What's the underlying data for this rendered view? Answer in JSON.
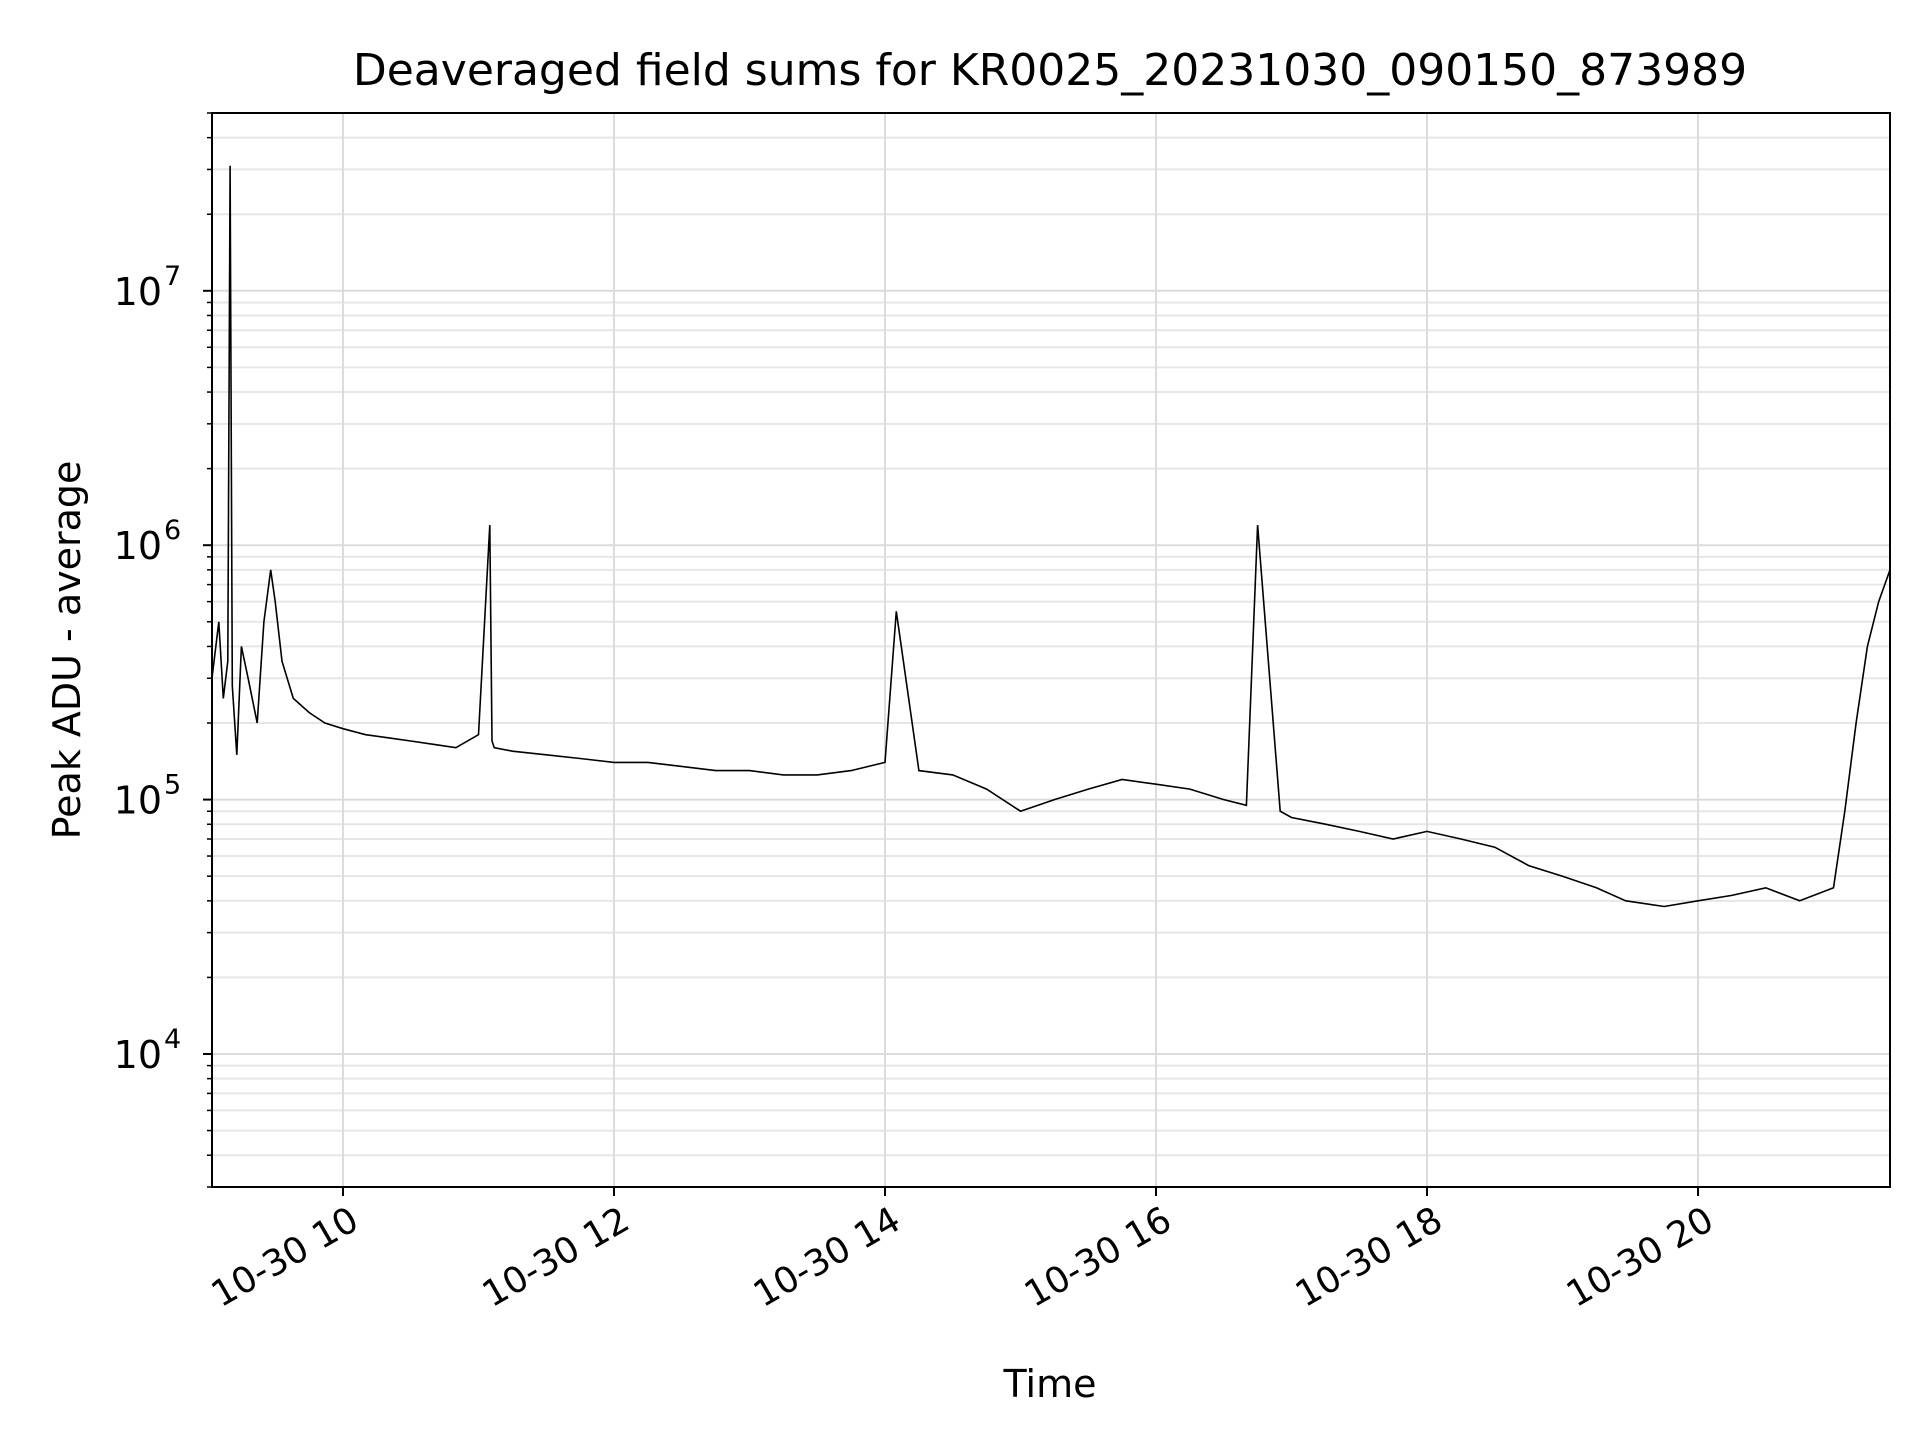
{
  "chart_data": {
    "type": "line",
    "title": "Deaveraged field sums for KR0025_20231030_090150_873989",
    "xlabel": "Time",
    "ylabel": "Peak ADU - average",
    "x_range": [
      "2023-10-30 09:02",
      "2023-10-30 21:25"
    ],
    "ylim": [
      3000,
      50000000
    ],
    "y_scale": "log",
    "grid": true,
    "grid_minor": true,
    "line_color": "#000000",
    "x_ticks": [
      {
        "value": "2023-10-30 10:00",
        "label": "10-30 10"
      },
      {
        "value": "2023-10-30 12:00",
        "label": "10-30 12"
      },
      {
        "value": "2023-10-30 14:00",
        "label": "10-30 14"
      },
      {
        "value": "2023-10-30 16:00",
        "label": "10-30 16"
      },
      {
        "value": "2023-10-30 18:00",
        "label": "10-30 18"
      },
      {
        "value": "2023-10-30 20:00",
        "label": "10-30 20"
      }
    ],
    "y_ticks": [
      {
        "value": 10000,
        "base": "10",
        "exp": "4"
      },
      {
        "value": 100000,
        "base": "10",
        "exp": "5"
      },
      {
        "value": 1000000,
        "base": "10",
        "exp": "6"
      },
      {
        "value": 10000000,
        "base": "10",
        "exp": "7"
      }
    ],
    "series": [
      {
        "x": [
          "2023-10-30 09:02",
          "2023-10-30 09:05",
          "2023-10-30 09:07",
          "2023-10-30 09:09",
          "2023-10-30 09:10",
          "2023-10-30 09:11",
          "2023-10-30 09:13",
          "2023-10-30 09:15",
          "2023-10-30 09:18",
          "2023-10-30 09:22",
          "2023-10-30 09:25",
          "2023-10-30 09:28",
          "2023-10-30 09:30",
          "2023-10-30 09:33",
          "2023-10-30 09:38",
          "2023-10-30 09:45",
          "2023-10-30 09:52",
          "2023-10-30 10:00",
          "2023-10-30 10:10",
          "2023-10-30 10:20",
          "2023-10-30 10:30",
          "2023-10-30 10:40",
          "2023-10-30 10:50",
          "2023-10-30 11:00",
          "2023-10-30 11:05",
          "2023-10-30 11:06",
          "2023-10-30 11:07",
          "2023-10-30 11:15",
          "2023-10-30 11:30",
          "2023-10-30 11:45",
          "2023-10-30 12:00",
          "2023-10-30 12:15",
          "2023-10-30 12:30",
          "2023-10-30 12:45",
          "2023-10-30 13:00",
          "2023-10-30 13:15",
          "2023-10-30 13:30",
          "2023-10-30 13:45",
          "2023-10-30 14:00",
          "2023-10-30 14:05",
          "2023-10-30 14:15",
          "2023-10-30 14:30",
          "2023-10-30 14:45",
          "2023-10-30 15:00",
          "2023-10-30 15:15",
          "2023-10-30 15:30",
          "2023-10-30 15:45",
          "2023-10-30 16:00",
          "2023-10-30 16:15",
          "2023-10-30 16:30",
          "2023-10-30 16:40",
          "2023-10-30 16:45",
          "2023-10-30 16:55",
          "2023-10-30 17:00",
          "2023-10-30 17:15",
          "2023-10-30 17:30",
          "2023-10-30 17:45",
          "2023-10-30 18:00",
          "2023-10-30 18:15",
          "2023-10-30 18:30",
          "2023-10-30 18:45",
          "2023-10-30 19:00",
          "2023-10-30 19:15",
          "2023-10-30 19:28",
          "2023-10-30 19:45",
          "2023-10-30 20:00",
          "2023-10-30 20:15",
          "2023-10-30 20:30",
          "2023-10-30 20:45",
          "2023-10-30 21:00",
          "2023-10-30 21:05",
          "2023-10-30 21:10",
          "2023-10-30 21:15",
          "2023-10-30 21:20",
          "2023-10-30 21:25"
        ],
        "y": [
          300000,
          500000,
          250000,
          350000,
          31000000,
          280000,
          150000,
          400000,
          300000,
          200000,
          500000,
          800000,
          600000,
          350000,
          250000,
          220000,
          200000,
          190000,
          180000,
          175000,
          170000,
          165000,
          160000,
          180000,
          1200000,
          170000,
          160000,
          155000,
          150000,
          145000,
          140000,
          140000,
          135000,
          130000,
          130000,
          125000,
          125000,
          130000,
          140000,
          550000,
          130000,
          125000,
          110000,
          90000,
          100000,
          110000,
          120000,
          115000,
          110000,
          100000,
          95000,
          1200000,
          90000,
          85000,
          80000,
          75000,
          70000,
          75000,
          70000,
          65000,
          55000,
          50000,
          45000,
          40000,
          38000,
          40000,
          42000,
          45000,
          40000,
          45000,
          90000,
          200000,
          400000,
          600000,
          800000
        ]
      }
    ]
  }
}
